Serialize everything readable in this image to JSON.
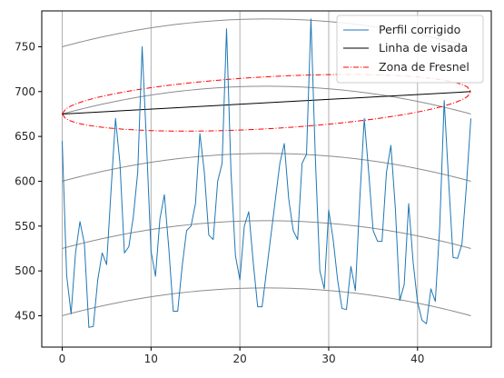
{
  "chart_data": {
    "type": "line",
    "title": "",
    "xlabel": "",
    "ylabel": "",
    "xlim": [
      -2.3,
      48.3
    ],
    "ylim": [
      415,
      790
    ],
    "grid": "vertical lines at x ticks",
    "legend_position": "top-right",
    "x_ticks": [
      0,
      10,
      20,
      30,
      40
    ],
    "y_ticks": [
      450,
      500,
      550,
      600,
      650,
      700,
      750
    ],
    "colors": {
      "profile": "#1f77b4",
      "sight_line": "#000000",
      "fresnel": "#ff0000",
      "earth_curves": "#8c8c8c",
      "grid": "#b0b0b0"
    },
    "series": [
      {
        "name": "Perfil corrigido",
        "style": "solid",
        "x": [
          0,
          0.5,
          1,
          1.5,
          2,
          2.5,
          3,
          3.5,
          4,
          4.5,
          5,
          5.5,
          6,
          6.5,
          7,
          7.5,
          8,
          8.5,
          9,
          9.5,
          10,
          10.5,
          11,
          11.5,
          12,
          12.5,
          13,
          13.5,
          14,
          14.5,
          15,
          15.5,
          16,
          16.5,
          17,
          17.5,
          18,
          18.5,
          19,
          19.5,
          20,
          20.5,
          21,
          21.5,
          22,
          22.5,
          23,
          23.5,
          24,
          24.5,
          25,
          25.5,
          26,
          26.5,
          27,
          27.5,
          28,
          28.5,
          29,
          29.5,
          30,
          30.5,
          31,
          31.5,
          32,
          32.5,
          33,
          33.5,
          34,
          34.5,
          35,
          35.5,
          36,
          36.5,
          37,
          37.5,
          38,
          38.5,
          39,
          39.5,
          40,
          40.5,
          41,
          41.5,
          42,
          42.5,
          43,
          43.5,
          44,
          44.5,
          45,
          45.5,
          46
        ],
        "y": [
          645,
          495,
          452,
          520,
          555,
          530,
          437,
          438,
          490,
          520,
          507,
          590,
          670,
          620,
          520,
          527,
          560,
          610,
          750,
          640,
          522,
          494,
          558,
          585,
          525,
          455,
          455,
          505,
          545,
          550,
          575,
          653,
          610,
          540,
          535,
          600,
          620,
          770,
          610,
          517,
          490,
          550,
          566,
          510,
          460,
          460,
          500,
          540,
          580,
          620,
          642,
          580,
          545,
          535,
          620,
          630,
          781,
          625,
          500,
          480,
          568,
          535,
          490,
          458,
          457,
          505,
          478,
          580,
          670,
          610,
          545,
          533,
          533,
          610,
          640,
          570,
          467,
          485,
          575,
          510,
          465,
          445,
          441,
          480,
          466,
          550,
          690,
          600,
          515,
          514,
          530,
          595,
          670
        ]
      },
      {
        "name": "Linha de visada",
        "style": "solid",
        "x": [
          0,
          46
        ],
        "y": [
          675,
          700
        ]
      },
      {
        "name": "Zona de Fresnel",
        "style": "dash-dot",
        "description_free": true,
        "endpoints": [
          [
            0,
            675
          ],
          [
            46,
            700
          ]
        ],
        "max_radius": 29
      }
    ],
    "reference_curves": [
      {
        "start": 450,
        "end": 450,
        "peak": 481,
        "peak_x": 23
      },
      {
        "start": 525,
        "end": 525,
        "peak": 556,
        "peak_x": 23
      },
      {
        "start": 600,
        "end": 600,
        "peak": 631,
        "peak_x": 23
      },
      {
        "start": 675,
        "end": 675,
        "peak": 706,
        "peak_x": 23
      },
      {
        "start": 750,
        "end": 750,
        "peak": 781,
        "peak_x": 23
      }
    ]
  }
}
